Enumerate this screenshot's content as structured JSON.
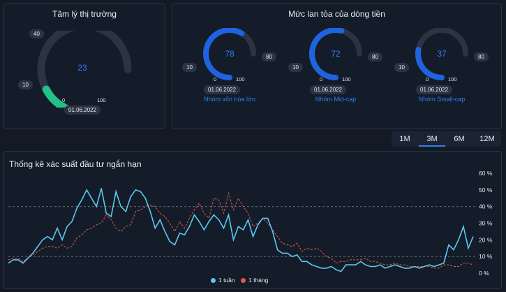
{
  "sentiment": {
    "title": "Tâm lý thị trường",
    "value": "23",
    "value_num": 23,
    "min": "0",
    "max": "100",
    "mark_low": "10",
    "mark_high": "40",
    "date": "01.06.2022",
    "color": "#22c08a"
  },
  "flow": {
    "title": "Mức lan tỏa của dòng tiền",
    "gauges": [
      {
        "value": "78",
        "value_num": 78,
        "min": "0",
        "max": "100",
        "mark_low": "10",
        "mark_high": "80",
        "date": "01.06.2022",
        "name": "Nhóm vốn hóa lớn"
      },
      {
        "value": "72",
        "value_num": 72,
        "min": "0",
        "max": "100",
        "mark_low": "10",
        "mark_high": "80",
        "date": "01.06.2022",
        "name": "Nhóm Mid-cap"
      },
      {
        "value": "37",
        "value_num": 37,
        "min": "0",
        "max": "100",
        "mark_low": "10",
        "mark_high": "80",
        "date": "01.06.2022",
        "name": "Nhóm Small-cap"
      }
    ],
    "color": "#1f63e0"
  },
  "tabs": {
    "items": [
      "1M",
      "3M",
      "6M",
      "12M"
    ],
    "active": "3M"
  },
  "chart_data": {
    "type": "line",
    "title": "Thống kê xác suất đầu tư ngắn hạn",
    "y_ticks": [
      "0 %",
      "10 %",
      "20 %",
      "30 %",
      "40 %",
      "50 %",
      "60 %"
    ],
    "ylim": [
      0,
      60
    ],
    "reference_lines": [
      10,
      40
    ],
    "grid": false,
    "legend_position": "bottom",
    "series": [
      {
        "name": "1 tuần",
        "color": "#5bc8ef",
        "style": "solid",
        "values": [
          6,
          8,
          8,
          6,
          9,
          12,
          16,
          20,
          22,
          20,
          27,
          20,
          28,
          31,
          39,
          44,
          50,
          45,
          40,
          51,
          36,
          34,
          49,
          40,
          37,
          46,
          50,
          49,
          45,
          37,
          27,
          32,
          25,
          19,
          17,
          24,
          23,
          28,
          35,
          31,
          26,
          31,
          35,
          32,
          27,
          35,
          20,
          28,
          26,
          32,
          22,
          29,
          33,
          33,
          25,
          14,
          12,
          12,
          10,
          11,
          7,
          7,
          5,
          4,
          3,
          3,
          4,
          2,
          1,
          5,
          5,
          5,
          7,
          5,
          4,
          4,
          5,
          3,
          4,
          5,
          4,
          3,
          3,
          4,
          3,
          4,
          5,
          4,
          5,
          6,
          17,
          14,
          20,
          28,
          15,
          22
        ]
      },
      {
        "name": "1 tháng",
        "color": "#e05a45",
        "style": "dashed",
        "values": [
          8,
          9,
          9,
          7,
          9,
          11,
          13,
          15,
          16,
          16,
          15,
          17,
          15,
          16,
          21,
          23,
          26,
          27,
          29,
          30,
          35,
          32,
          27,
          25,
          28,
          29,
          37,
          38,
          40,
          41,
          40,
          36,
          34,
          30,
          25,
          31,
          27,
          33,
          38,
          42,
          36,
          33,
          45,
          44,
          36,
          48,
          38,
          45,
          40,
          36,
          28,
          30,
          33,
          30,
          26,
          22,
          18,
          17,
          16,
          18,
          13,
          15,
          14,
          15,
          13,
          10,
          9,
          6,
          7,
          7,
          8,
          8,
          8,
          9,
          7,
          7,
          6,
          5,
          5,
          6,
          5,
          5,
          4,
          4,
          4,
          4,
          4,
          3,
          3,
          5,
          5,
          4,
          4,
          6,
          6,
          5
        ]
      }
    ]
  }
}
